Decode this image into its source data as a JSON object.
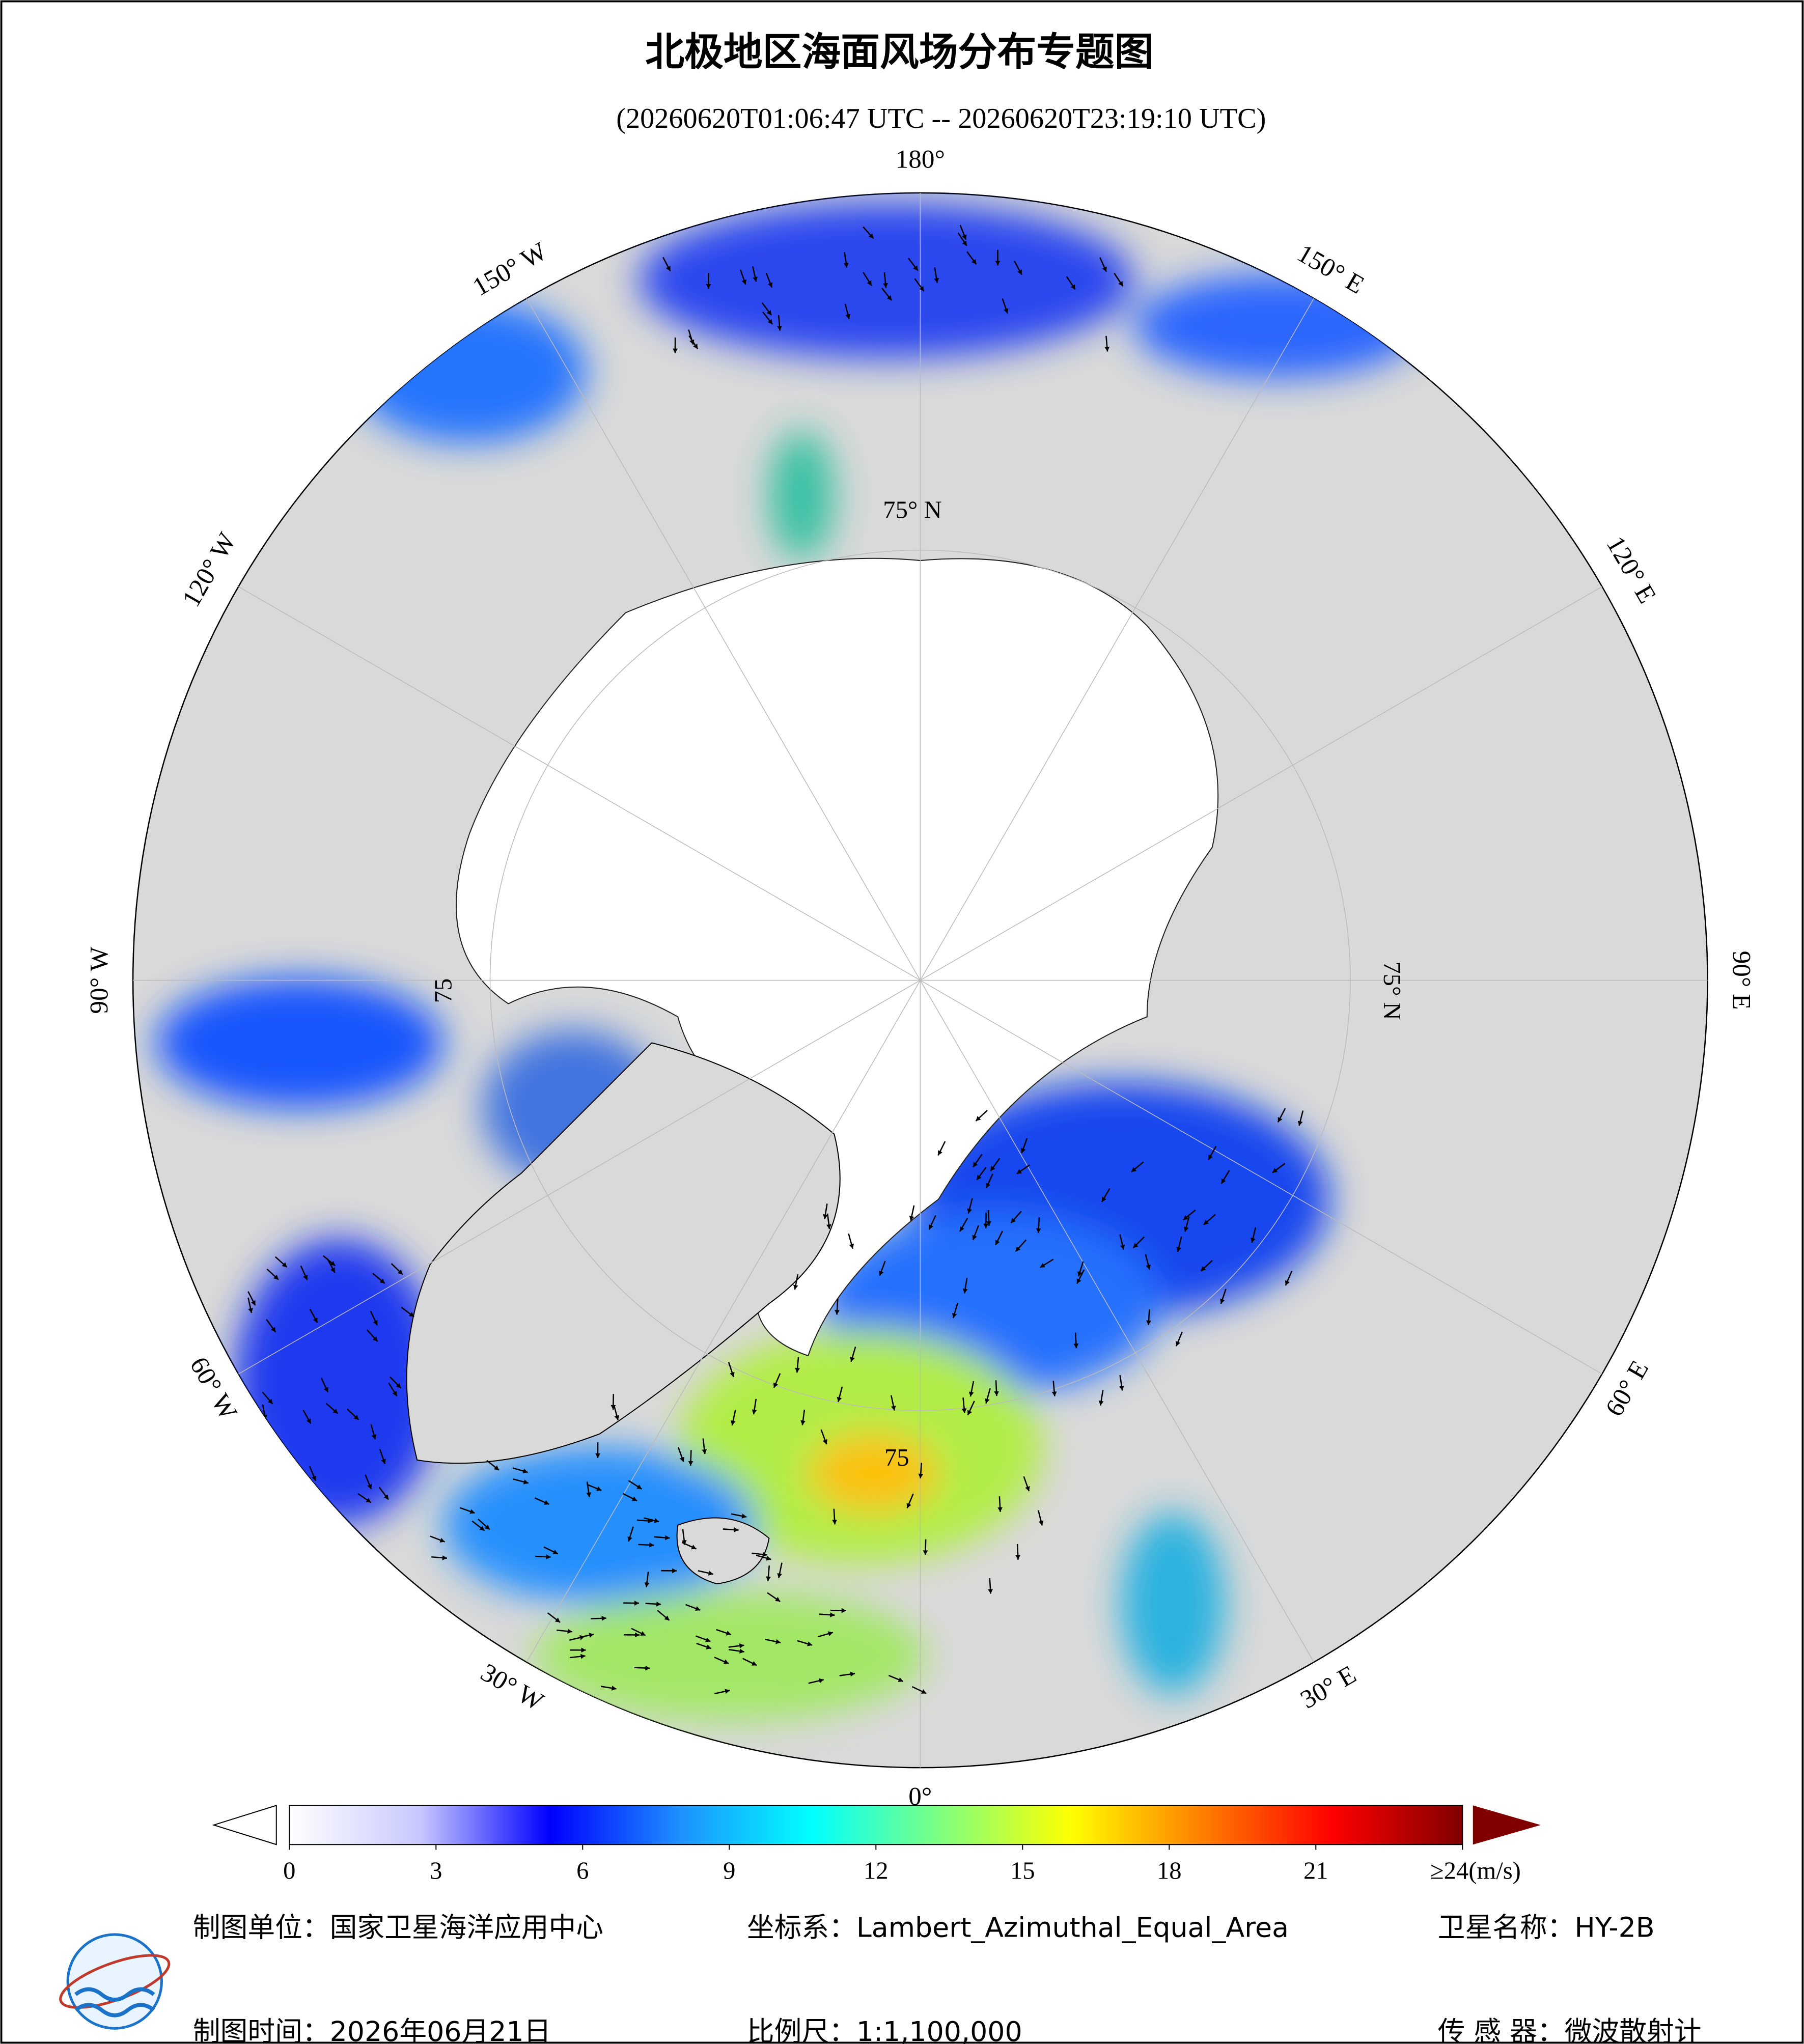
{
  "header": {
    "title": "北极地区海面风场分布专题图",
    "subtitle": "(20260620T01:06:47 UTC -- 20260620T23:19:10 UTC)"
  },
  "map": {
    "lon_labels": [
      "180°",
      "150° E",
      "120° E",
      "90° E",
      "60° E",
      "30° E",
      "0°",
      "30° W",
      "60° W",
      "90° W",
      "120° W",
      "150° W"
    ],
    "lat_labels": [
      "75° N",
      "75° N",
      "75",
      "75"
    ]
  },
  "colorbar": {
    "range": [
      0,
      24
    ],
    "colors": [
      "#ffffff",
      "#c8c8ff",
      "#0000ff",
      "#1e90ff",
      "#00ffff",
      "#7fff7f",
      "#ffff00",
      "#ff7f00",
      "#ff0000",
      "#800000"
    ],
    "ticks": [
      0,
      3,
      6,
      9,
      12,
      15,
      18,
      21,
      {
        "value": 24,
        "label": "≥24(m/s)"
      }
    ]
  },
  "footer": {
    "unit": "制图单位：国家卫星海洋应用中心",
    "projection": "坐标系：Lambert_Azimuthal_Equal_Area",
    "satellite": "卫星名称：HY-2B",
    "date": "制图时间：2026年06月21日",
    "scale": "比例尺：1:1,100,000",
    "sensor": "传 感 器：微波散射计"
  }
}
